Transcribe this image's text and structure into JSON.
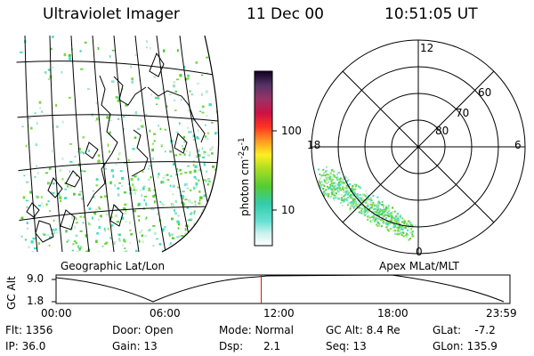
{
  "header": {
    "instrument": "Ultraviolet Imager",
    "date": "11 Dec 00",
    "time": "10:51:05 UT"
  },
  "colorbar": {
    "unit_main": "photon cm",
    "unit_exp1": "-2",
    "unit_mid": "s",
    "unit_exp2": "-1",
    "ticks": [
      "100",
      "10"
    ]
  },
  "left_panel": {
    "label": "Geographic Lat/Lon"
  },
  "right_panel": {
    "label": "Apex MLat/MLT",
    "mlt_labels": [
      "12",
      "18",
      "6",
      "0"
    ],
    "mlat_labels": [
      "60",
      "70",
      "80"
    ]
  },
  "orbit": {
    "ylabel": "GC Alt",
    "yticks": [
      "9.0",
      "1.8"
    ],
    "xticks": [
      "00:00",
      "06:00",
      "12:00",
      "18:00",
      "23:59"
    ],
    "marker_time_fraction": 0.452
  },
  "info": {
    "flt": "Flt: 1356",
    "ip": "IP: 36.0",
    "door": "Door: Open",
    "gain": "Gain: 13",
    "mode": "Mode: Normal",
    "dsp": "Dsp:      2.1",
    "gcalt": "GC Alt: 8.4 Re",
    "seq": "Seq: 13",
    "glat": "GLat:    -7.2",
    "glon": "GLon: 135.9"
  },
  "colors": {
    "aurora_green": "#55cc33",
    "aurora_cyan": "#44ddbb",
    "marker": "#ff0000"
  }
}
